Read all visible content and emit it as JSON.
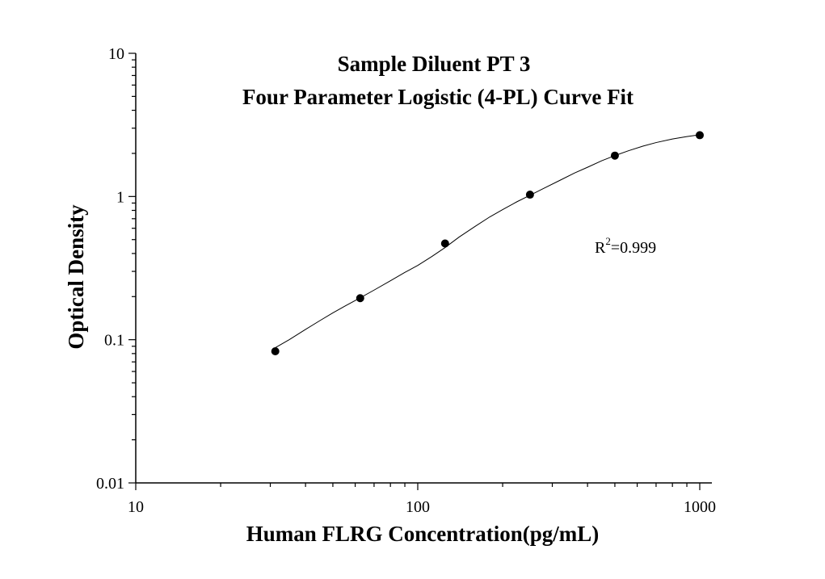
{
  "chart_data": {
    "type": "scatter",
    "title": "Sample Diluent PT 3",
    "subtitle": "Four Parameter Logistic (4-PL) Curve Fit",
    "xlabel": "Human FLRG Concentration(pg/mL)",
    "ylabel": "Optical Density",
    "xscale": "log",
    "yscale": "log",
    "xlim": [
      10,
      1000
    ],
    "ylim": [
      0.01,
      10
    ],
    "grid": false,
    "x_ticks": [
      "10",
      "100",
      "1000"
    ],
    "y_ticks": [
      "0.01",
      "0.1",
      "1",
      "10"
    ],
    "series": [
      {
        "x": [
          31.25,
          62.5,
          125,
          250,
          500,
          1000
        ],
        "y": [
          0.083,
          0.195,
          0.47,
          1.03,
          1.93,
          2.68
        ]
      }
    ],
    "fit_curve": {
      "model": "4-PL",
      "x": [
        31.25,
        35,
        40,
        45,
        50,
        55,
        62.5,
        70,
        80,
        90,
        100,
        112,
        125,
        140,
        160,
        180,
        200,
        225,
        250,
        280,
        320,
        360,
        400,
        450,
        500,
        560,
        630,
        700,
        800,
        900,
        1000
      ],
      "y": [
        0.088,
        0.1,
        0.118,
        0.136,
        0.154,
        0.171,
        0.196,
        0.222,
        0.258,
        0.295,
        0.33,
        0.38,
        0.44,
        0.52,
        0.62,
        0.72,
        0.81,
        0.92,
        1.02,
        1.14,
        1.3,
        1.46,
        1.6,
        1.78,
        1.93,
        2.09,
        2.25,
        2.38,
        2.52,
        2.62,
        2.7
      ]
    },
    "annotation": {
      "prefix": "R",
      "superscript": "2",
      "suffix": "=0.999"
    }
  }
}
